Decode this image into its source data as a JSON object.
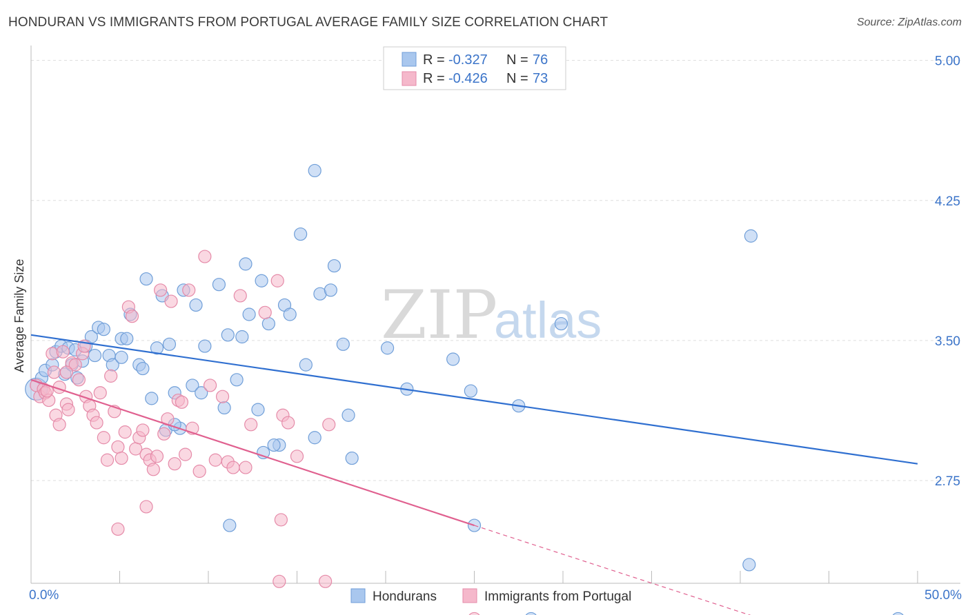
{
  "title": "HONDURAN VS IMMIGRANTS FROM PORTUGAL AVERAGE FAMILY SIZE CORRELATION CHART",
  "source": "Source: ZipAtlas.com",
  "watermark": {
    "zip": "ZIP",
    "atlas": "atlas"
  },
  "legend_top": {
    "r_label": "R =",
    "n_label": "N =",
    "rows": [
      {
        "r": "-0.327",
        "n": "76",
        "color": "#a9c7ee"
      },
      {
        "r": "-0.426",
        "n": "73",
        "color": "#f5b8cb"
      }
    ]
  },
  "chart_data": {
    "type": "scatter",
    "title": "HONDURAN VS IMMIGRANTS FROM PORTUGAL AVERAGE FAMILY SIZE CORRELATION CHART",
    "ylabel": "Average Family Size",
    "xlim": [
      0,
      50
    ],
    "ylim": [
      2.2,
      5.08
    ],
    "x_tick_labels": [
      "0.0%",
      "50.0%"
    ],
    "y_ticks": [
      2.75,
      3.5,
      4.25,
      5.0
    ],
    "y_tick_labels": [
      "2.75",
      "3.50",
      "4.25",
      "5.00"
    ],
    "grid": "horizontal dashed",
    "legend_placement": "bottom",
    "series": [
      {
        "name": "Hondurans",
        "color": "#a9c7ee",
        "stroke": "#6f9ed8",
        "line_color": "#2f6fd0",
        "r": -0.327,
        "n": 76,
        "trend": {
          "x0": 0.0,
          "y0": 3.53,
          "x1": 50.0,
          "y1": 2.84
        },
        "points": [
          [
            0.3,
            3.24
          ],
          [
            0.6,
            3.3
          ],
          [
            0.8,
            3.34
          ],
          [
            1.2,
            3.37
          ],
          [
            1.4,
            3.44
          ],
          [
            1.7,
            3.47
          ],
          [
            1.9,
            3.32
          ],
          [
            2.1,
            3.46
          ],
          [
            2.3,
            3.37
          ],
          [
            2.6,
            3.3
          ],
          [
            2.9,
            3.39
          ],
          [
            3.1,
            3.47
          ],
          [
            3.4,
            3.52
          ],
          [
            3.6,
            3.42
          ],
          [
            3.8,
            3.57
          ],
          [
            4.1,
            3.56
          ],
          [
            4.4,
            3.42
          ],
          [
            4.6,
            3.37
          ],
          [
            5.1,
            3.51
          ],
          [
            5.4,
            3.51
          ],
          [
            5.6,
            3.64
          ],
          [
            6.1,
            3.37
          ],
          [
            6.3,
            3.35
          ],
          [
            6.5,
            3.83
          ],
          [
            6.8,
            3.19
          ],
          [
            7.1,
            3.46
          ],
          [
            7.4,
            3.74
          ],
          [
            7.6,
            3.02
          ],
          [
            7.8,
            3.48
          ],
          [
            8.1,
            3.22
          ],
          [
            8.4,
            3.03
          ],
          [
            8.6,
            3.77
          ],
          [
            9.1,
            3.26
          ],
          [
            9.3,
            3.69
          ],
          [
            9.6,
            3.22
          ],
          [
            9.8,
            3.47
          ],
          [
            10.6,
            3.8
          ],
          [
            10.9,
            3.14
          ],
          [
            11.1,
            3.53
          ],
          [
            11.6,
            3.29
          ],
          [
            11.9,
            3.52
          ],
          [
            12.1,
            3.91
          ],
          [
            12.3,
            3.64
          ],
          [
            12.8,
            3.13
          ],
          [
            13.1,
            2.9
          ],
          [
            13.4,
            3.59
          ],
          [
            14.3,
            3.69
          ],
          [
            14.6,
            3.64
          ],
          [
            13.0,
            3.82
          ],
          [
            14.0,
            2.94
          ],
          [
            15.2,
            4.07
          ],
          [
            15.5,
            3.37
          ],
          [
            13.7,
            2.94
          ],
          [
            16.0,
            2.98
          ],
          [
            16.3,
            3.75
          ],
          [
            16.9,
            3.77
          ],
          [
            17.1,
            3.9
          ],
          [
            17.6,
            3.48
          ],
          [
            17.9,
            3.1
          ],
          [
            18.1,
            2.87
          ],
          [
            20.1,
            3.46
          ],
          [
            21.2,
            3.24
          ],
          [
            23.8,
            3.4
          ],
          [
            24.8,
            3.23
          ],
          [
            25.0,
            2.51
          ],
          [
            27.5,
            3.15
          ],
          [
            29.9,
            3.59
          ],
          [
            16.0,
            4.41
          ],
          [
            40.6,
            4.06
          ],
          [
            40.5,
            2.3
          ],
          [
            28.2,
            2.01
          ],
          [
            48.9,
            2.01
          ],
          [
            11.2,
            2.51
          ],
          [
            8.1,
            3.05
          ],
          [
            5.1,
            3.41
          ],
          [
            2.5,
            3.45
          ]
        ]
      },
      {
        "name": "Immigrants from Portugal",
        "color": "#f5b8cb",
        "stroke": "#e58aa8",
        "line_color": "#e0608f",
        "r": -0.426,
        "n": 73,
        "trend": {
          "x0": 0.0,
          "y0": 3.29,
          "x1": 25.0,
          "y1": 2.51
        },
        "trend_dashed": {
          "x0": 25.0,
          "y0": 2.51,
          "x1": 41.5,
          "y1": 2.0
        },
        "points": [
          [
            0.3,
            3.26
          ],
          [
            0.5,
            3.2
          ],
          [
            0.7,
            3.24
          ],
          [
            0.8,
            3.22
          ],
          [
            1.0,
            3.18
          ],
          [
            1.2,
            3.43
          ],
          [
            1.3,
            3.33
          ],
          [
            1.6,
            3.25
          ],
          [
            1.4,
            3.1
          ],
          [
            1.6,
            3.05
          ],
          [
            1.8,
            3.44
          ],
          [
            2.0,
            3.16
          ],
          [
            2.1,
            3.13
          ],
          [
            2.3,
            3.38
          ],
          [
            2.5,
            3.37
          ],
          [
            2.7,
            3.29
          ],
          [
            2.9,
            3.43
          ],
          [
            3.1,
            3.2
          ],
          [
            3.3,
            3.15
          ],
          [
            3.5,
            3.1
          ],
          [
            3.7,
            3.06
          ],
          [
            3.9,
            3.22
          ],
          [
            4.1,
            2.98
          ],
          [
            4.3,
            2.86
          ],
          [
            4.5,
            3.31
          ],
          [
            4.7,
            3.12
          ],
          [
            4.9,
            2.93
          ],
          [
            5.1,
            2.87
          ],
          [
            5.3,
            3.01
          ],
          [
            5.5,
            3.68
          ],
          [
            5.7,
            3.63
          ],
          [
            5.9,
            2.92
          ],
          [
            6.1,
            2.98
          ],
          [
            6.3,
            3.02
          ],
          [
            6.5,
            2.89
          ],
          [
            6.7,
            2.86
          ],
          [
            6.9,
            2.81
          ],
          [
            7.1,
            2.88
          ],
          [
            7.3,
            3.77
          ],
          [
            7.5,
            3.0
          ],
          [
            7.7,
            3.08
          ],
          [
            7.9,
            3.71
          ],
          [
            8.1,
            2.84
          ],
          [
            8.3,
            3.18
          ],
          [
            8.5,
            3.17
          ],
          [
            8.7,
            2.89
          ],
          [
            8.9,
            3.77
          ],
          [
            9.1,
            3.03
          ],
          [
            9.5,
            2.8
          ],
          [
            9.8,
            3.95
          ],
          [
            10.1,
            3.26
          ],
          [
            10.4,
            2.86
          ],
          [
            10.8,
            3.2
          ],
          [
            11.1,
            2.85
          ],
          [
            11.4,
            2.82
          ],
          [
            11.8,
            3.74
          ],
          [
            12.1,
            2.82
          ],
          [
            12.4,
            3.05
          ],
          [
            13.2,
            3.65
          ],
          [
            13.9,
            3.82
          ],
          [
            14.2,
            3.1
          ],
          [
            14.5,
            3.06
          ],
          [
            15.0,
            2.88
          ],
          [
            16.8,
            3.05
          ],
          [
            6.5,
            2.61
          ],
          [
            4.9,
            2.49
          ],
          [
            14.1,
            2.54
          ],
          [
            14.0,
            2.21
          ],
          [
            16.6,
            2.21
          ],
          [
            25.0,
            2.01
          ],
          [
            2.0,
            3.33
          ],
          [
            0.9,
            3.23
          ],
          [
            3.0,
            3.47
          ]
        ]
      }
    ]
  },
  "bottom_legend": [
    {
      "label": "Hondurans",
      "color": "#a9c7ee"
    },
    {
      "label": "Immigrants from Portugal",
      "color": "#f5b8cb"
    }
  ]
}
